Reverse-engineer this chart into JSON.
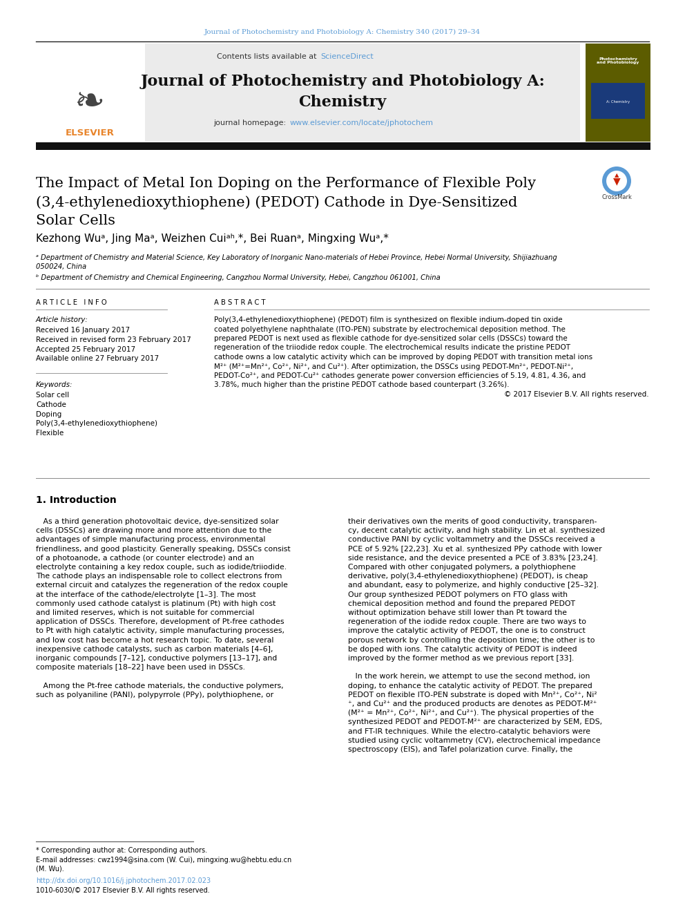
{
  "page_bg": "#ffffff",
  "top_citation": "Journal of Photochemistry and Photobiology A: Chemistry 340 (2017) 29–34",
  "top_citation_color": "#5b9bd5",
  "header_bg": "#ebebeb",
  "journal_title_line1": "Journal of Photochemistry and Photobiology A:",
  "journal_title_line2": "Chemistry",
  "journal_homepage_url": "www.elsevier.com/locate/jphotochem",
  "journal_homepage_color": "#5b9bd5",
  "elsevier_color": "#e8842a",
  "article_title_line1": "The Impact of Metal Ion Doping on the Performance of Flexible Poly",
  "article_title_line2": "(3,4-ethylenedioxythiophene) (PEDOT) Cathode in Dye-Sensitized",
  "article_title_line3": "Solar Cells",
  "authors_text": "Kezhong Wuᵃ, Jing Maᵃ, Weizhen Cuiᵃʰ,*, Bei Ruanᵃ, Mingxing Wuᵃ,*",
  "affiliation_a": "ᵃ Department of Chemistry and Material Science, Key Laboratory of Inorganic Nano-materials of Hebei Province, Hebei Normal University, Shijiazhuang\n050024, China",
  "affiliation_b": "ᵇ Department of Chemistry and Chemical Engineering, Cangzhou Normal University, Hebei, Cangzhou 061001, China",
  "article_info_header": "A R T I C L E   I N F O",
  "abstract_header": "A B S T R A C T",
  "article_history_label": "Article history:",
  "article_history": [
    "Received 16 January 2017",
    "Received in revised form 23 February 2017",
    "Accepted 25 February 2017",
    "Available online 27 February 2017"
  ],
  "keywords_label": "Keywords:",
  "keywords": [
    "Solar cell",
    "Cathode",
    "Doping",
    "Poly(3,4-ethylenedioxythiophene)",
    "Flexible"
  ],
  "abstract_lines": [
    "Poly(3,4-ethylenedioxythiophene) (PEDOT) film is synthesized on flexible indium-doped tin oxide",
    "coated polyethylene naphthalate (ITO-PEN) substrate by electrochemical deposition method. The",
    "prepared PEDOT is next used as flexible cathode for dye-sensitized solar cells (DSSCs) toward the",
    "regeneration of the triiodide redox couple. The electrochemical results indicate the pristine PEDOT",
    "cathode owns a low catalytic activity which can be improved by doping PEDOT with transition metal ions",
    "M²⁺ (M²⁺=Mn²⁺, Co²⁺, Ni²⁺, and Cu²⁺). After optimization, the DSSCs using PEDOT-Mn²⁺, PEDOT-Ni²⁺,",
    "PEDOT-Co²⁺, and PEDOT-Cu²⁺ cathodes generate power conversion efficiencies of 5.19, 4.81, 4.36, and",
    "3.78%, much higher than the pristine PEDOT cathode based counterpart (3.26%).",
    "© 2017 Elsevier B.V. All rights reserved."
  ],
  "intro_title": "1. Introduction",
  "intro_left_lines": [
    "   As a third generation photovoltaic device, dye-sensitized solar",
    "cells (DSSCs) are drawing more and more attention due to the",
    "advantages of simple manufacturing process, environmental",
    "friendliness, and good plasticity. Generally speaking, DSSCs consist",
    "of a photoanode, a cathode (or counter electrode) and an",
    "electrolyte containing a key redox couple, such as iodide/triiodide.",
    "The cathode plays an indispensable role to collect electrons from",
    "external circuit and catalyzes the regeneration of the redox couple",
    "at the interface of the cathode/electrolyte [1–3]. The most",
    "commonly used cathode catalyst is platinum (Pt) with high cost",
    "and limited reserves, which is not suitable for commercial",
    "application of DSSCs. Therefore, development of Pt-free cathodes",
    "to Pt with high catalytic activity, simple manufacturing processes,",
    "and low cost has become a hot research topic. To date, several",
    "inexpensive cathode catalysts, such as carbon materials [4–6],",
    "inorganic compounds [7–12], conductive polymers [13–17], and",
    "composite materials [18–22] have been used in DSSCs.",
    "",
    "   Among the Pt-free cathode materials, the conductive polymers,",
    "such as polyaniline (PANI), polypyrrole (PPy), polythiophene, or"
  ],
  "intro_right_lines": [
    "their derivatives own the merits of good conductivity, transparen-",
    "cy, decent catalytic activity, and high stability. Lin et al. synthesized",
    "conductive PANI by cyclic voltammetry and the DSSCs received a",
    "PCE of 5.92% [22,23]. Xu et al. synthesized PPy cathode with lower",
    "side resistance, and the device presented a PCE of 3.83% [23,24].",
    "Compared with other conjugated polymers, a polythiophene",
    "derivative, poly(3,4-ethylenedioxythiophene) (PEDOT), is cheap",
    "and abundant, easy to polymerize, and highly conductive [25–32].",
    "Our group synthesized PEDOT polymers on FTO glass with",
    "chemical deposition method and found the prepared PEDOT",
    "without optimization behave still lower than Pt toward the",
    "regeneration of the iodide redox couple. There are two ways to",
    "improve the catalytic activity of PEDOT, the one is to construct",
    "porous network by controlling the deposition time; the other is to",
    "be doped with ions. The catalytic activity of PEDOT is indeed",
    "improved by the former method as we previous report [33].",
    "",
    "   In the work herein, we attempt to use the second method, ion",
    "doping, to enhance the catalytic activity of PEDOT. The prepared",
    "PEDOT on flexible ITO-PEN substrate is doped with Mn²⁺, Co²⁺, Ni²",
    "⁺, and Cu²⁺ and the produced products are denotes as PEDOT-M²⁺",
    "(M²⁺ = Mn²⁺, Co²⁺, Ni²⁺, and Cu²⁺). The physical properties of the",
    "synthesized PEDOT and PEDOT-M²⁺ are characterized by SEM, EDS,",
    "and FT-IR techniques. While the electro-catalytic behaviors were",
    "studied using cyclic voltammetry (CV), electrochemical impedance",
    "spectroscopy (EIS), and Tafel polarization curve. Finally, the"
  ],
  "footnote_star": "* Corresponding author at: Corresponding authors.",
  "footnote_email": "E-mail addresses: cwz1994@sina.com (W. Cui), mingxing.wu@hebtu.edu.cn",
  "footnote_email2": "(M. Wu).",
  "footnote_doi": "http://dx.doi.org/10.1016/j.jphotochem.2017.02.023",
  "footnote_issn": "1010-6030/© 2017 Elsevier B.V. All rights reserved.",
  "link_color": "#5b9bd5"
}
